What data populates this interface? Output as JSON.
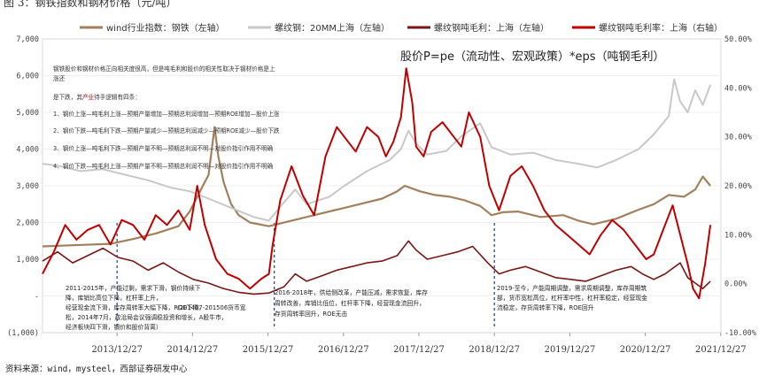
{
  "figure": {
    "title": "图 3：钢铁指数和钢材价格（元/吨）",
    "source": "资料来源：wind，mysteel，西部证券研发中心"
  },
  "formula_text": "股价P=pe（流动性、宏观政策）*eps（吨钢毛利）",
  "notes": [
    "钢铁股价和钢材价格正向相关度很高，但是吨毛利和股价的相关性取决于钢材价格是上",
    "涨还",
    "是下跌，其产业待手逻辑有四条：",
    "1、钢价上涨—吨毛利上涨—预期产量增加—预期总利润增加—预期ROE增加—股价上涨",
    "2、钢价下跌—吨毛利下跌—预期产量减少—预期总利润减少—预期ROE减少—股价下跌",
    "3、钢价上涨—吨毛利下跌—预期产量不明—预期总利润不明—对股价指引作用不明确",
    "4、钢价下跌—吨毛利上涨—预期产量不明—预期总利润不明—对股价指引作用不明确"
  ],
  "annotations": {
    "a1": [
      "2011-2015年，产能过剩，需求下滑，钢价持续下",
      "降，库销比高位下降，杠杆率上升，",
      "经营现金流下滑，库存周转率大幅下降，ROE下滑。"
    ],
    "a1_red": [
      "（201407-201506货币宽",
      "松，2014年7月，政治局会议强调稳投资和增长，A股牛市，",
      "经济板块四下滑，钢价和股价背离）"
    ],
    "a2": [
      "2016-2018年，供给侧改革，产能压减，需求恢复，库存",
      "周转改善，库销比低位，杠杆率下降，经营现金流回升，",
      "存货周转率回升，ROE无击"
    ],
    "a3": [
      "2019-至今，产能周期调整，需求周期调整，库存周期筑",
      "部，货币宽松高位，杠杆率中性，杠杆率稳定，经营现金",
      "流稳定，存货周转率下降，ROE回升"
    ]
  },
  "chart_data": {
    "type": "line",
    "x_ticks": [
      "2013/12/27",
      "2014/12/27",
      "2015/12/27",
      "2016/12/27",
      "2017/12/27",
      "2018/12/27",
      "2019/12/27",
      "2020/12/27",
      "2021/12/27"
    ],
    "y_left": {
      "range": [
        -1000,
        7000
      ],
      "ticks": [
        "(1,000)",
        "-",
        "1,000",
        "2,000",
        "3,000",
        "4,000",
        "5,000",
        "6,000",
        "7,000"
      ]
    },
    "y_right": {
      "range": [
        -0.1,
        0.5
      ],
      "ticks": [
        "-10.00%",
        "0.00%",
        "10.00%",
        "20.00%",
        "30.00%",
        "40.00%",
        "50.00%"
      ]
    },
    "dashed_dates": [
      "2013/12/27",
      "2016/01/27",
      "2018/12/27"
    ],
    "series": [
      {
        "name": "wind行业指数：钢铁（左轴）",
        "color": "#a2805b",
        "axis": "left",
        "width": 2.2,
        "points": [
          [
            2013.0,
            1350
          ],
          [
            2013.4,
            1380
          ],
          [
            2013.9,
            1420
          ],
          [
            2014.2,
            1550
          ],
          [
            2014.5,
            1700
          ],
          [
            2014.8,
            1900
          ],
          [
            2014.95,
            2300
          ],
          [
            2015.05,
            2700
          ],
          [
            2015.2,
            3300
          ],
          [
            2015.28,
            4600
          ],
          [
            2015.33,
            3800
          ],
          [
            2015.4,
            3100
          ],
          [
            2015.5,
            2500
          ],
          [
            2015.6,
            2200
          ],
          [
            2015.75,
            2000
          ],
          [
            2016.0,
            1900
          ],
          [
            2016.3,
            2050
          ],
          [
            2016.6,
            2200
          ],
          [
            2016.9,
            2350
          ],
          [
            2017.2,
            2500
          ],
          [
            2017.5,
            2650
          ],
          [
            2017.7,
            2850
          ],
          [
            2017.8,
            3000
          ],
          [
            2018.0,
            2850
          ],
          [
            2018.2,
            2750
          ],
          [
            2018.4,
            2700
          ],
          [
            2018.6,
            2600
          ],
          [
            2018.8,
            2450
          ],
          [
            2018.95,
            2200
          ],
          [
            2019.1,
            2280
          ],
          [
            2019.3,
            2300
          ],
          [
            2019.6,
            2150
          ],
          [
            2019.9,
            2200
          ],
          [
            2020.1,
            2050
          ],
          [
            2020.3,
            1950
          ],
          [
            2020.6,
            2100
          ],
          [
            2020.9,
            2350
          ],
          [
            2021.1,
            2500
          ],
          [
            2021.3,
            2750
          ],
          [
            2021.5,
            2700
          ],
          [
            2021.65,
            2900
          ],
          [
            2021.75,
            3250
          ],
          [
            2021.85,
            3000
          ]
        ]
      },
      {
        "name": "螺纹钢：20MM上海（左轴）",
        "color": "#c8c8c8",
        "axis": "left",
        "width": 2.0,
        "points": [
          [
            2013.0,
            3600
          ],
          [
            2013.2,
            3550
          ],
          [
            2013.5,
            3400
          ],
          [
            2013.8,
            3450
          ],
          [
            2014.0,
            3350
          ],
          [
            2014.4,
            3150
          ],
          [
            2014.7,
            2950
          ],
          [
            2014.95,
            2850
          ],
          [
            2015.2,
            2650
          ],
          [
            2015.5,
            2400
          ],
          [
            2015.8,
            2150
          ],
          [
            2016.0,
            2050
          ],
          [
            2016.2,
            2550
          ],
          [
            2016.35,
            2900
          ],
          [
            2016.5,
            2500
          ],
          [
            2016.8,
            2700
          ],
          [
            2017.0,
            3000
          ],
          [
            2017.3,
            3400
          ],
          [
            2017.6,
            3700
          ],
          [
            2017.75,
            4000
          ],
          [
            2017.85,
            4500
          ],
          [
            2017.95,
            4150
          ],
          [
            2018.1,
            3850
          ],
          [
            2018.35,
            3950
          ],
          [
            2018.55,
            4350
          ],
          [
            2018.8,
            4700
          ],
          [
            2018.95,
            4050
          ],
          [
            2019.2,
            3850
          ],
          [
            2019.5,
            3900
          ],
          [
            2019.8,
            3700
          ],
          [
            2020.1,
            3600
          ],
          [
            2020.35,
            3500
          ],
          [
            2020.6,
            3700
          ],
          [
            2020.9,
            4000
          ],
          [
            2021.1,
            4400
          ],
          [
            2021.3,
            4900
          ],
          [
            2021.37,
            5900
          ],
          [
            2021.45,
            5300
          ],
          [
            2021.55,
            5000
          ],
          [
            2021.65,
            5600
          ],
          [
            2021.75,
            5200
          ],
          [
            2021.85,
            5750
          ]
        ]
      },
      {
        "name": "螺纹钢吨毛利：上海（左轴）",
        "color": "#7a1616",
        "axis": "left",
        "width": 1.6,
        "points": [
          [
            2013.0,
            950
          ],
          [
            2013.2,
            1200
          ],
          [
            2013.4,
            900
          ],
          [
            2013.6,
            1100
          ],
          [
            2013.8,
            1300
          ],
          [
            2014.0,
            1050
          ],
          [
            2014.2,
            950
          ],
          [
            2014.4,
            700
          ],
          [
            2014.6,
            900
          ],
          [
            2014.8,
            650
          ],
          [
            2015.0,
            450
          ],
          [
            2015.2,
            350
          ],
          [
            2015.4,
            200
          ],
          [
            2015.6,
            100
          ],
          [
            2015.8,
            50
          ],
          [
            2016.0,
            80
          ],
          [
            2016.2,
            250
          ],
          [
            2016.35,
            600
          ],
          [
            2016.5,
            400
          ],
          [
            2016.7,
            550
          ],
          [
            2016.9,
            700
          ],
          [
            2017.1,
            800
          ],
          [
            2017.3,
            900
          ],
          [
            2017.5,
            950
          ],
          [
            2017.7,
            1100
          ],
          [
            2017.85,
            1500
          ],
          [
            2017.95,
            1250
          ],
          [
            2018.1,
            1000
          ],
          [
            2018.3,
            1100
          ],
          [
            2018.5,
            1200
          ],
          [
            2018.7,
            1350
          ],
          [
            2018.9,
            900
          ],
          [
            2019.05,
            600
          ],
          [
            2019.2,
            700
          ],
          [
            2019.4,
            800
          ],
          [
            2019.6,
            650
          ],
          [
            2019.8,
            500
          ],
          [
            2020.0,
            450
          ],
          [
            2020.2,
            400
          ],
          [
            2020.4,
            550
          ],
          [
            2020.6,
            700
          ],
          [
            2020.8,
            800
          ],
          [
            2020.95,
            600
          ],
          [
            2021.1,
            450
          ],
          [
            2021.25,
            600
          ],
          [
            2021.45,
            900
          ],
          [
            2021.55,
            500
          ],
          [
            2021.65,
            350
          ],
          [
            2021.75,
            200
          ],
          [
            2021.85,
            400
          ]
        ]
      },
      {
        "name": "螺纹钢吨毛利率：上海（右轴）",
        "color": "#c00000",
        "axis": "right",
        "width": 2.0,
        "points": [
          [
            2013.0,
            0.02
          ],
          [
            2013.15,
            0.065
          ],
          [
            2013.3,
            0.12
          ],
          [
            2013.45,
            0.09
          ],
          [
            2013.6,
            0.11
          ],
          [
            2013.75,
            0.12
          ],
          [
            2013.9,
            0.08
          ],
          [
            2014.05,
            0.13
          ],
          [
            2014.2,
            0.12
          ],
          [
            2014.35,
            0.09
          ],
          [
            2014.5,
            0.14
          ],
          [
            2014.65,
            0.12
          ],
          [
            2014.8,
            0.15
          ],
          [
            2014.95,
            0.11
          ],
          [
            2015.05,
            0.2
          ],
          [
            2015.15,
            0.12
          ],
          [
            2015.3,
            0.05
          ],
          [
            2015.45,
            0.02
          ],
          [
            2015.6,
            0.01
          ],
          [
            2015.75,
            -0.01
          ],
          [
            2015.9,
            0.01
          ],
          [
            2016.0,
            0.02
          ],
          [
            2016.05,
            0.08
          ],
          [
            2016.15,
            0.17
          ],
          [
            2016.3,
            0.24
          ],
          [
            2016.45,
            0.18
          ],
          [
            2016.6,
            0.14
          ],
          [
            2016.75,
            0.26
          ],
          [
            2016.9,
            0.32
          ],
          [
            2017.0,
            0.3
          ],
          [
            2017.15,
            0.27
          ],
          [
            2017.3,
            0.32
          ],
          [
            2017.45,
            0.3
          ],
          [
            2017.55,
            0.26
          ],
          [
            2017.65,
            0.29
          ],
          [
            2017.75,
            0.34
          ],
          [
            2017.82,
            0.44
          ],
          [
            2017.9,
            0.37
          ],
          [
            2017.95,
            0.28
          ],
          [
            2018.05,
            0.26
          ],
          [
            2018.15,
            0.31
          ],
          [
            2018.3,
            0.33
          ],
          [
            2018.45,
            0.3
          ],
          [
            2018.55,
            0.28
          ],
          [
            2018.65,
            0.35
          ],
          [
            2018.8,
            0.3
          ],
          [
            2018.92,
            0.2
          ],
          [
            2019.05,
            0.15
          ],
          [
            2019.2,
            0.22
          ],
          [
            2019.35,
            0.24
          ],
          [
            2019.5,
            0.2
          ],
          [
            2019.65,
            0.15
          ],
          [
            2019.8,
            0.12
          ],
          [
            2019.95,
            0.1
          ],
          [
            2020.1,
            0.08
          ],
          [
            2020.25,
            0.06
          ],
          [
            2020.4,
            0.1
          ],
          [
            2020.55,
            0.13
          ],
          [
            2020.7,
            0.11
          ],
          [
            2020.85,
            0.08
          ],
          [
            2021.0,
            0.05
          ],
          [
            2021.1,
            0.06
          ],
          [
            2021.25,
            0.12
          ],
          [
            2021.35,
            0.16
          ],
          [
            2021.45,
            0.1
          ],
          [
            2021.55,
            0.04
          ],
          [
            2021.62,
            -0.01
          ],
          [
            2021.7,
            -0.03
          ],
          [
            2021.78,
            0.04
          ],
          [
            2021.85,
            0.12
          ]
        ]
      }
    ]
  }
}
